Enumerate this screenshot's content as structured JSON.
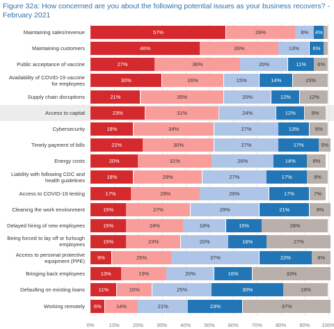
{
  "chart_data": {
    "type": "stacked-bar",
    "orientation": "horizontal",
    "title": "Figure 32a: How concerned are you about the following potential issues as your business recovers? - February 2021",
    "categories": [
      "Maintaining sales/revenue",
      "Maintaining customers",
      "Public acceptance of vaccine",
      "Availability of COVID-19 vaccine for employees",
      "Supply chain disruptions",
      "Access to capital",
      "Cybersecurity",
      "Timely payment of bills",
      "Energy costs",
      "Liability with following CDC and health guidelines",
      "Access to COVID-19 testing",
      "Cleaning the work environment",
      "Delayed hiring of new employees",
      "Being forced to lay off or furlough employees",
      "Access to personal protective equipment (PPE)",
      "Bringing back employees",
      "Defaulting on existing loans",
      "Working remotely"
    ],
    "highlight": "Access to capital",
    "series": [
      {
        "color": "#d42a2e",
        "values": [
          57,
          46,
          27,
          30,
          21,
          23,
          18,
          22,
          20,
          18,
          17,
          15,
          15,
          15,
          9,
          13,
          11,
          6
        ],
        "value_labels": [
          "57%",
          "46%",
          "27%",
          "30%",
          "21%",
          "23%",
          "18%",
          "22%",
          "20%",
          "18%",
          "17%",
          "15%",
          "15%",
          "15%",
          "9%",
          "13%",
          "11%",
          "6%"
        ]
      },
      {
        "color": "#f99d9b",
        "values": [
          29,
          33,
          36,
          26,
          35,
          31,
          34,
          30,
          31,
          29,
          29,
          27,
          24,
          23,
          25,
          19,
          15,
          14
        ],
        "value_labels": [
          "29%",
          "33%",
          "36%",
          "26%",
          "35%",
          "31%",
          "34%",
          "30%",
          "31%",
          "29%",
          "29%",
          "27%",
          "24%",
          "23%",
          "25%",
          "19%",
          "15%",
          "14%"
        ]
      },
      {
        "color": "#aec5e7",
        "values": [
          8,
          13,
          20,
          15,
          20,
          24,
          27,
          27,
          26,
          27,
          29,
          29,
          18,
          20,
          37,
          20,
          25,
          21
        ],
        "value_labels": [
          "8%",
          "13%",
          "20%",
          "15%",
          "20%",
          "24%",
          "27%",
          "27%",
          "26%",
          "27%",
          "29%",
          "29%",
          "18%",
          "20%",
          "37%",
          "20%",
          "25%",
          "21%"
        ]
      },
      {
        "color": "#2276b6",
        "values": [
          4,
          6,
          11,
          14,
          12,
          12,
          13,
          17,
          14,
          17,
          17,
          21,
          15,
          16,
          22,
          16,
          30,
          23
        ],
        "value_labels": [
          "4%",
          "6%",
          "11%",
          "14%",
          "12%",
          "12%",
          "13%",
          "17%",
          "14%",
          "17%",
          "17%",
          "21%",
          "15%",
          "16%",
          "22%",
          "16%",
          "30%",
          "23%"
        ]
      },
      {
        "color": "#bab0ab",
        "values": [
          2,
          2,
          6,
          15,
          12,
          9,
          8,
          5,
          8,
          9,
          7,
          9,
          28,
          27,
          8,
          33,
          19,
          37
        ],
        "value_labels": [
          null,
          null,
          "6%",
          "15%",
          "12%",
          "9%",
          "8%",
          "5%",
          "8%",
          "9%",
          "7%",
          "9%",
          "28%",
          "27%",
          "8%",
          "33%",
          "19%",
          "37%"
        ]
      }
    ],
    "xlim": [
      0,
      100
    ],
    "xticks": [
      {
        "value": 0,
        "label": "0%"
      },
      {
        "value": 10,
        "label": "10%"
      },
      {
        "value": 20,
        "label": "20%"
      },
      {
        "value": 30,
        "label": "30%"
      },
      {
        "value": 40,
        "label": "40%"
      },
      {
        "value": 50,
        "label": "50%"
      },
      {
        "value": 60,
        "label": "60%"
      },
      {
        "value": 70,
        "label": "70%"
      },
      {
        "value": 80,
        "label": "80%"
      },
      {
        "value": 90,
        "label": "90%"
      },
      {
        "value": 100,
        "label": "100%"
      }
    ],
    "grid": true
  }
}
